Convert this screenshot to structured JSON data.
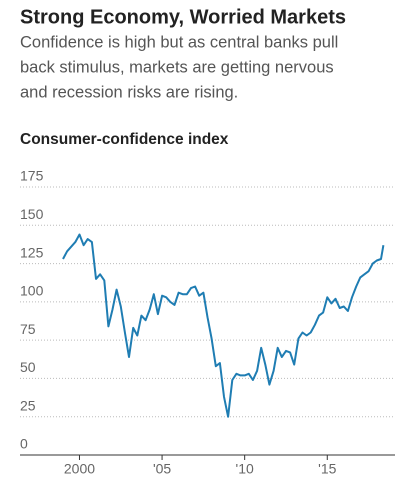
{
  "chart_data": {
    "type": "line",
    "title": "Strong Economy, Worried Markets",
    "subtitle": [
      "Confidence is high but as central banks pull",
      "back stimulus, markets are getting nervous",
      "and recession risks are rising."
    ],
    "y_label": "Consumer-confidence index",
    "xlim": [
      1996.4,
      2019.1
    ],
    "xticks": [
      {
        "value": 2000,
        "label": "2000"
      },
      {
        "value": 2005,
        "label": "'05"
      },
      {
        "value": 2010,
        "label": "'10"
      },
      {
        "value": 2015,
        "label": "'15"
      }
    ],
    "ylim": [
      0,
      175
    ],
    "yticks": [
      0,
      25,
      50,
      75,
      100,
      125,
      150,
      175
    ],
    "grid": true,
    "series": [
      {
        "name": "Consumer-confidence index",
        "color": "#1f7db3",
        "x": [
          1999.0,
          1999.25,
          1999.5,
          1999.75,
          2000.0,
          2000.25,
          2000.5,
          2000.75,
          2001.0,
          2001.25,
          2001.5,
          2001.75,
          2002.0,
          2002.25,
          2002.5,
          2002.75,
          2003.0,
          2003.25,
          2003.5,
          2003.75,
          2004.0,
          2004.25,
          2004.5,
          2004.75,
          2005.0,
          2005.25,
          2005.5,
          2005.75,
          2006.0,
          2006.25,
          2006.5,
          2006.75,
          2007.0,
          2007.25,
          2007.5,
          2007.75,
          2008.0,
          2008.25,
          2008.5,
          2008.75,
          2009.0,
          2009.25,
          2009.5,
          2009.75,
          2010.0,
          2010.25,
          2010.5,
          2010.75,
          2011.0,
          2011.25,
          2011.5,
          2011.75,
          2012.0,
          2012.25,
          2012.5,
          2012.75,
          2013.0,
          2013.25,
          2013.5,
          2013.75,
          2014.0,
          2014.25,
          2014.5,
          2014.75,
          2015.0,
          2015.25,
          2015.5,
          2015.75,
          2016.0,
          2016.25,
          2016.5,
          2016.75,
          2017.0,
          2017.25,
          2017.5,
          2017.75,
          2018.0,
          2018.25,
          2018.4
        ],
        "values": [
          128,
          133,
          136,
          139,
          144,
          137,
          141,
          139,
          115,
          118,
          114,
          84,
          95,
          108,
          97,
          80,
          64,
          83,
          78,
          91,
          88,
          95,
          105,
          92,
          104,
          103,
          100,
          98,
          106,
          105,
          105,
          109,
          110,
          104,
          106,
          90,
          76,
          58,
          60,
          38,
          25,
          49,
          53,
          52,
          52,
          53,
          49,
          55,
          70,
          59,
          46,
          55,
          70,
          64,
          68,
          67,
          59,
          76,
          80,
          78,
          80,
          85,
          91,
          93,
          103,
          99,
          102,
          96,
          97,
          94,
          103,
          110,
          116,
          118,
          120,
          125,
          127,
          128,
          137
        ]
      }
    ]
  }
}
